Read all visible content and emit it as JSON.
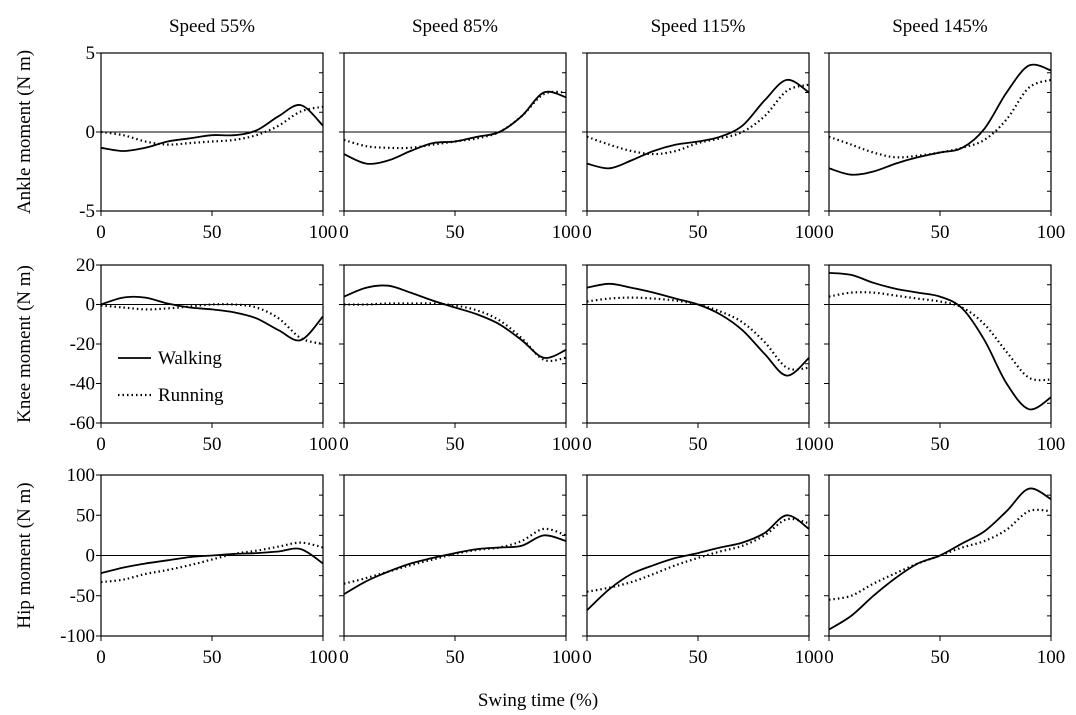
{
  "chart_data": {
    "type": "line",
    "xlabel": "Swing time (%)",
    "columns": [
      "Speed 55%",
      "Speed 85%",
      "Speed 115%",
      "Speed 145%"
    ],
    "rows": [
      {
        "ylabel": "Ankle moment (N m)",
        "ylim": [
          -5,
          5
        ],
        "yticks": [
          5,
          0,
          -5
        ],
        "yticklabels": [
          "5",
          "0",
          "-5"
        ]
      },
      {
        "ylabel": "Knee moment (N m)",
        "ylim": [
          -60,
          20
        ],
        "yticks": [
          20,
          0,
          -20,
          -40,
          -60
        ],
        "yticklabels": [
          "20",
          "0",
          "-20",
          "-40",
          "-60"
        ]
      },
      {
        "ylabel": "Hip moment (N m)",
        "ylim": [
          -100,
          100
        ],
        "yticks": [
          100,
          50,
          0,
          -50,
          -100
        ],
        "yticklabels": [
          "100",
          "50",
          "0",
          "-50",
          "-100"
        ]
      }
    ],
    "xlim": [
      0,
      100
    ],
    "xticks": [
      0,
      50,
      100
    ],
    "xticklabels": [
      "0",
      "50",
      "100"
    ],
    "legend": {
      "placement": "inside knee panel, speed 55%, lower-left",
      "entries": [
        "Walking",
        "Running"
      ]
    },
    "series_styles": {
      "Walking": "solid",
      "Running": "dotted"
    },
    "panels": [
      {
        "row": 0,
        "col": 0,
        "x": [
          0,
          10,
          20,
          30,
          40,
          50,
          60,
          70,
          80,
          90,
          100
        ],
        "walking": [
          -1.0,
          -1.2,
          -1.0,
          -0.6,
          -0.4,
          -0.2,
          -0.2,
          0.1,
          1.0,
          1.7,
          0.4
        ],
        "running": [
          0.0,
          -0.2,
          -0.6,
          -0.8,
          -0.7,
          -0.6,
          -0.5,
          -0.2,
          0.4,
          1.3,
          1.6
        ]
      },
      {
        "row": 0,
        "col": 1,
        "x": [
          0,
          10,
          20,
          30,
          40,
          50,
          60,
          70,
          80,
          90,
          100
        ],
        "walking": [
          -1.4,
          -2.0,
          -1.8,
          -1.2,
          -0.7,
          -0.6,
          -0.3,
          0.0,
          1.0,
          2.5,
          2.2
        ],
        "running": [
          -0.5,
          -0.9,
          -1.0,
          -1.0,
          -0.8,
          -0.6,
          -0.4,
          0.0,
          1.0,
          2.4,
          2.5
        ]
      },
      {
        "row": 0,
        "col": 2,
        "x": [
          0,
          10,
          20,
          30,
          40,
          50,
          60,
          70,
          80,
          90,
          100
        ],
        "walking": [
          -2.0,
          -2.3,
          -1.8,
          -1.2,
          -0.8,
          -0.6,
          -0.3,
          0.4,
          2.0,
          3.3,
          2.5
        ],
        "running": [
          -0.3,
          -0.8,
          -1.2,
          -1.4,
          -1.2,
          -0.7,
          -0.4,
          0.0,
          1.0,
          2.6,
          3.0
        ]
      },
      {
        "row": 0,
        "col": 3,
        "x": [
          0,
          10,
          20,
          30,
          40,
          50,
          60,
          70,
          80,
          90,
          100
        ],
        "walking": [
          -2.3,
          -2.7,
          -2.5,
          -2.0,
          -1.6,
          -1.3,
          -1.0,
          0.2,
          2.5,
          4.2,
          3.9
        ],
        "running": [
          -0.3,
          -0.8,
          -1.3,
          -1.6,
          -1.5,
          -1.3,
          -1.0,
          -0.5,
          0.8,
          2.8,
          3.3
        ]
      },
      {
        "row": 1,
        "col": 0,
        "x": [
          0,
          10,
          20,
          30,
          40,
          50,
          60,
          70,
          80,
          90,
          100
        ],
        "walking": [
          0.0,
          3.5,
          3.5,
          0.5,
          -1.5,
          -2.5,
          -4.0,
          -7.0,
          -13.0,
          -18.0,
          -6.0
        ],
        "running": [
          -0.5,
          -1.5,
          -2.5,
          -2.0,
          -1.0,
          0.0,
          0.0,
          -1.5,
          -7.0,
          -17.0,
          -20.0
        ]
      },
      {
        "row": 1,
        "col": 1,
        "x": [
          0,
          10,
          20,
          30,
          40,
          50,
          60,
          70,
          80,
          90,
          100
        ],
        "walking": [
          4.0,
          8.5,
          9.5,
          6.0,
          2.0,
          -1.5,
          -5.0,
          -10.0,
          -18.0,
          -27.0,
          -23.0
        ],
        "running": [
          0.0,
          0.0,
          0.5,
          0.5,
          0.5,
          -0.5,
          -3.0,
          -8.0,
          -17.0,
          -28.0,
          -27.0
        ]
      },
      {
        "row": 1,
        "col": 2,
        "x": [
          0,
          10,
          20,
          30,
          40,
          50,
          60,
          70,
          80,
          90,
          100
        ],
        "walking": [
          8.5,
          10.5,
          8.5,
          6.0,
          3.0,
          0.0,
          -5.0,
          -13.0,
          -25.0,
          -36.0,
          -27.0
        ],
        "running": [
          1.5,
          3.0,
          3.5,
          3.0,
          2.0,
          0.0,
          -3.5,
          -9.0,
          -19.0,
          -32.0,
          -32.0
        ]
      },
      {
        "row": 1,
        "col": 3,
        "x": [
          0,
          10,
          20,
          30,
          40,
          50,
          60,
          70,
          80,
          90,
          100
        ],
        "walking": [
          16.0,
          15.0,
          11.0,
          8.0,
          6.0,
          4.0,
          -2.0,
          -18.0,
          -40.0,
          -53.0,
          -47.0
        ],
        "running": [
          4.0,
          6.0,
          6.0,
          4.5,
          3.0,
          1.5,
          -1.5,
          -10.0,
          -24.0,
          -37.0,
          -38.0
        ]
      },
      {
        "row": 2,
        "col": 0,
        "x": [
          0,
          10,
          20,
          30,
          40,
          50,
          60,
          70,
          80,
          90,
          100
        ],
        "walking": [
          -22,
          -15,
          -10,
          -6,
          -2,
          0,
          2,
          3,
          5,
          8,
          -10
        ],
        "running": [
          -33,
          -30,
          -23,
          -18,
          -12,
          -5,
          2,
          6,
          11,
          16,
          10
        ]
      },
      {
        "row": 2,
        "col": 1,
        "x": [
          0,
          10,
          20,
          30,
          40,
          50,
          60,
          70,
          80,
          90,
          100
        ],
        "walking": [
          -48,
          -32,
          -20,
          -10,
          -3,
          3,
          8,
          10,
          12,
          25,
          18
        ],
        "running": [
          -35,
          -28,
          -20,
          -12,
          -5,
          2,
          7,
          10,
          18,
          33,
          25
        ]
      },
      {
        "row": 2,
        "col": 2,
        "x": [
          0,
          10,
          20,
          30,
          40,
          50,
          60,
          70,
          80,
          90,
          100
        ],
        "walking": [
          -68,
          -42,
          -23,
          -12,
          -3,
          3,
          10,
          16,
          28,
          50,
          33
        ],
        "running": [
          -45,
          -40,
          -33,
          -23,
          -12,
          -3,
          5,
          12,
          25,
          45,
          40
        ]
      },
      {
        "row": 2,
        "col": 3,
        "x": [
          0,
          10,
          20,
          30,
          40,
          50,
          60,
          70,
          80,
          90,
          100
        ],
        "walking": [
          -92,
          -75,
          -50,
          -28,
          -10,
          0,
          15,
          30,
          55,
          83,
          70
        ],
        "running": [
          -55,
          -50,
          -35,
          -22,
          -10,
          0,
          10,
          18,
          32,
          55,
          55
        ]
      }
    ]
  }
}
